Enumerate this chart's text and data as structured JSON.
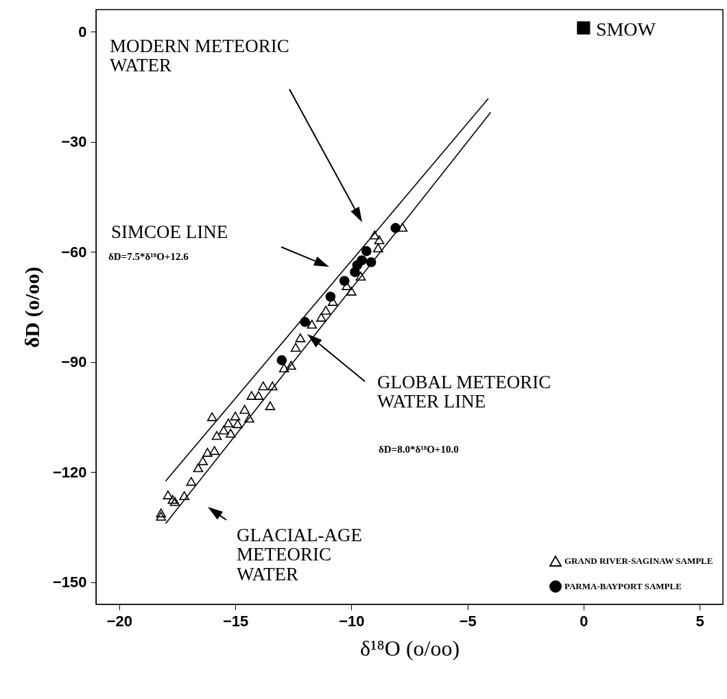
{
  "chart_data": {
    "type": "scatter",
    "xlabel": "δ¹⁸O (o/oo)",
    "ylabel": "δD (o/oo)",
    "xlim": [
      -21,
      6
    ],
    "xticks": [
      -20,
      -15,
      -10,
      -5,
      0,
      5
    ],
    "ylim": [
      -156,
      6
    ],
    "yticks": [
      -150,
      -120,
      -90,
      -60,
      -30,
      0
    ],
    "grid": false,
    "legend": "bottom right",
    "series": [
      {
        "name": "GRAND RIVER-SAGINAW SAMPLE",
        "color": "#000000",
        "marker": "triangle",
        "x": [
          -18.2,
          -18.2,
          -17.9,
          -17.7,
          -17.6,
          -17.2,
          -16.9,
          -16.6,
          -16.4,
          -16.2,
          -15.9,
          -16.0,
          -15.8,
          -15.5,
          -15.3,
          -15.2,
          -15.0,
          -14.9,
          -14.6,
          -14.4,
          -14.3,
          -14.0,
          -13.5,
          -13.8,
          -13.4,
          -12.9,
          -12.6,
          -12.4,
          -12.2,
          -11.7,
          -11.3,
          -11.1,
          -10.8,
          -10.2,
          -10.0,
          -9.6,
          -9.0,
          -8.8,
          -8.85,
          -7.8
        ],
        "values": [
          -131.1,
          -132,
          -126.2,
          -127.4,
          -128,
          -126.4,
          -122.5,
          -118.8,
          -116.9,
          -114.6,
          -114.1,
          -104.9,
          -110,
          -108.5,
          -106.6,
          -109.4,
          -104.7,
          -106.8,
          -102.9,
          -105.3,
          -99.1,
          -99.1,
          -101.9,
          -96.5,
          -96.5,
          -91.6,
          -90.9,
          -86,
          -83.4,
          -79.7,
          -77.8,
          -75.9,
          -73.5,
          -69.2,
          -70.7,
          -66.6,
          -55.4,
          -56.7,
          -58.9,
          -53.3
        ]
      },
      {
        "name": "PARMA-BAYPORT SAMPLE",
        "color": "#000000",
        "marker": "circle",
        "x": [
          -8.1,
          -13.0,
          -12.0,
          -10.9,
          -10.3,
          -9.85,
          -9.55,
          -9.35,
          -9.15,
          -9.75
        ],
        "values": [
          -53.5,
          -89.5,
          -79.1,
          -72.2,
          -67.9,
          -65.5,
          -62.3,
          -59.8,
          -62.8,
          -63.6
        ]
      },
      {
        "name": "SMOW",
        "color": "#000000",
        "marker": "square",
        "x": [
          0
        ],
        "values": [
          1
        ]
      },
      {
        "type": "line",
        "color": "#000000",
        "x": [
          -18,
          -4.1
        ],
        "values": [
          -122.4,
          -18.2
        ]
      },
      {
        "type": "line",
        "color": "#000000",
        "x": [
          -18,
          -4.0
        ],
        "values": [
          -134,
          -22
        ]
      }
    ],
    "annotations": [
      "MODERN METEORIC\nWATER",
      "SIMCOE LINE",
      "δD=7.5*δ¹⁸O+12.6",
      "GLOBAL METEORIC\nWATER LINE",
      "δD=8.0*δ¹⁸O+10.0",
      "GLACIAL-AGE\nMETEORIC\nWATER"
    ]
  }
}
